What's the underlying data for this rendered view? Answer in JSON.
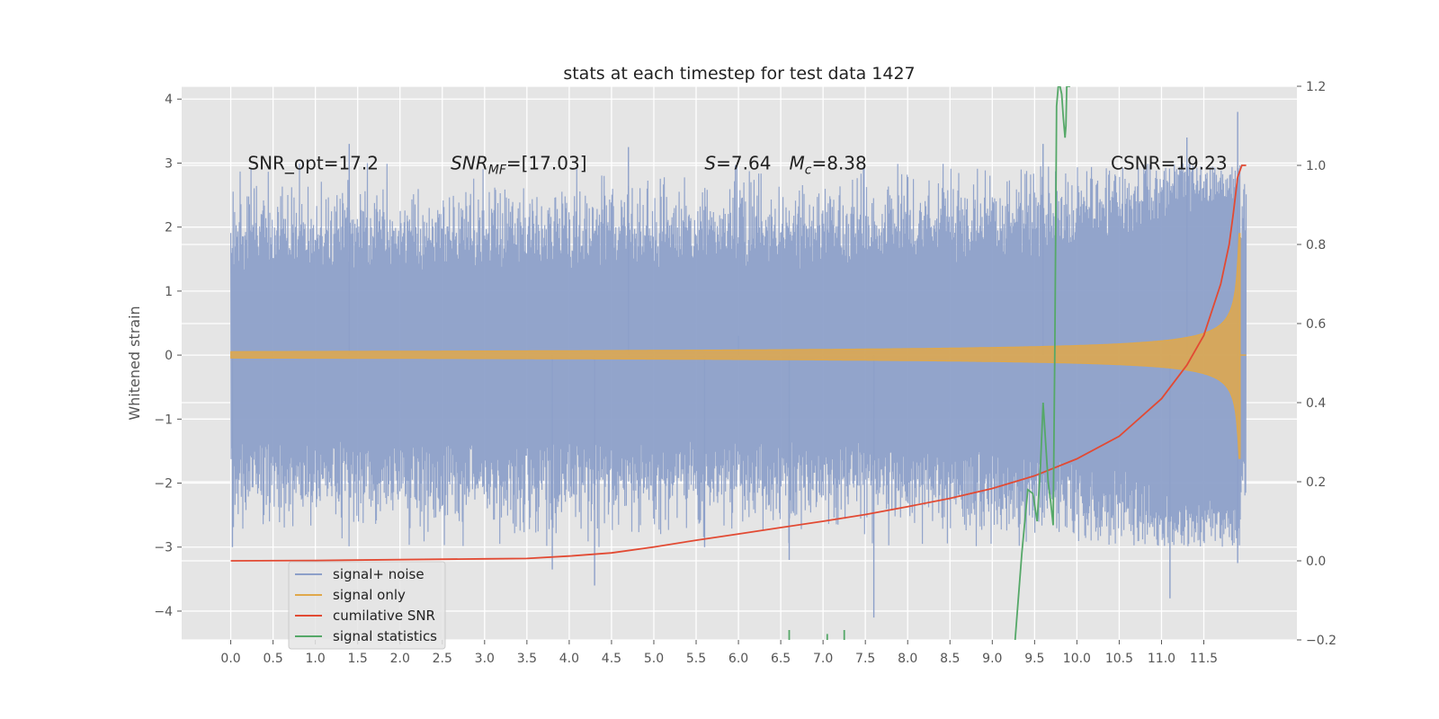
{
  "chart_data": {
    "type": "line",
    "title": "stats at each timestep for test data 1427",
    "ylabel": "Whitened strain",
    "xlim": [
      -0.58,
      12.6
    ],
    "ylim": [
      -4.45,
      4.2
    ],
    "y2lim": [
      -0.2,
      1.2
    ],
    "grid": true,
    "legend_position": "bottom-left",
    "x_ticks": [
      "0.0",
      "0.5",
      "1.0",
      "1.5",
      "2.0",
      "2.5",
      "3.0",
      "3.5",
      "4.0",
      "4.5",
      "5.0",
      "5.5",
      "6.0",
      "6.5",
      "7.0",
      "7.5",
      "8.0",
      "8.5",
      "9.0",
      "9.5",
      "10.0",
      "10.5",
      "11.0",
      "11.5"
    ],
    "y_ticks": [
      "4",
      "3",
      "2",
      "1",
      "0",
      "−1",
      "−2",
      "−3",
      "−4"
    ],
    "y2_ticks": [
      "1.2",
      "1.0",
      "0.8",
      "0.6",
      "0.4",
      "0.2",
      "0.0",
      "−0.2"
    ],
    "annotations": [
      {
        "text": "SNR_opt=17.2",
        "x": 0.2,
        "y": 3.0
      },
      {
        "text": "SNR_MF=[17.03]",
        "x": 2.6,
        "y": 3.0,
        "main": "SNR",
        "sub": "MF",
        "rest": "=[17.03]"
      },
      {
        "text": "S=7.64",
        "x": 5.6,
        "y": 3.0,
        "main": "S",
        "rest": "=7.64"
      },
      {
        "text": "M_c=8.38",
        "x": 6.6,
        "y": 3.0,
        "main": "M",
        "sub": "c",
        "rest": "=8.38"
      },
      {
        "text": "CSNR=19.23",
        "x": 10.4,
        "y": 3.0
      }
    ],
    "series": [
      {
        "name": "signal+ noise",
        "color": "#8da0c9",
        "axis": "left",
        "t_range": [
          0.0,
          12.0
        ],
        "core_amplitude": 1.75,
        "peak_amplitude": 3.8,
        "highlights": [
          [
            0.02,
            -3.0
          ],
          [
            1.4,
            3.3
          ],
          [
            3.8,
            -3.35
          ],
          [
            4.3,
            -3.6
          ],
          [
            4.7,
            3.25
          ],
          [
            5.6,
            -3.0
          ],
          [
            6.0,
            0.3
          ],
          [
            6.6,
            -3.2
          ],
          [
            7.6,
            -4.1
          ],
          [
            9.6,
            3.3
          ],
          [
            11.1,
            -3.8
          ],
          [
            11.3,
            3.4
          ],
          [
            11.9,
            3.8
          ],
          [
            11.9,
            -3.25
          ]
        ]
      },
      {
        "name": "signal only",
        "color": "#e0a84a",
        "axis": "left",
        "t_range": [
          0.0,
          11.93
        ],
        "t_coalescence": 11.93,
        "peak_amplitude": 1.9
      },
      {
        "name": "cumilative SNR",
        "color": "#e24a33",
        "axis": "right",
        "x": [
          0.0,
          1.0,
          2.0,
          3.0,
          3.5,
          4.0,
          4.5,
          5.0,
          5.5,
          6.0,
          6.5,
          7.0,
          7.5,
          8.0,
          8.5,
          9.0,
          9.5,
          10.0,
          10.5,
          11.0,
          11.3,
          11.5,
          11.7,
          11.8,
          11.85,
          11.9,
          11.95,
          12.0
        ],
        "y": [
          0.0,
          0.001,
          0.003,
          0.005,
          0.006,
          0.012,
          0.02,
          0.035,
          0.052,
          0.068,
          0.084,
          0.1,
          0.117,
          0.137,
          0.158,
          0.183,
          0.215,
          0.258,
          0.315,
          0.41,
          0.495,
          0.57,
          0.7,
          0.8,
          0.88,
          0.97,
          1.0,
          1.0
        ]
      },
      {
        "name": "signal statistics",
        "color": "#55a868",
        "axis": "right",
        "segments": [
          {
            "x": [
              6.6,
              6.6
            ],
            "y": [
              -0.2,
              -0.175
            ]
          },
          {
            "x": [
              7.05,
              7.05
            ],
            "y": [
              -0.2,
              -0.185
            ]
          },
          {
            "x": [
              7.25,
              7.25
            ],
            "y": [
              -0.2,
              -0.175
            ]
          },
          {
            "x": [
              9.27,
              9.35,
              9.42,
              9.48,
              9.53,
              9.57,
              9.6,
              9.63,
              9.66,
              9.69,
              9.72,
              9.74,
              9.76,
              9.78,
              9.8,
              9.82,
              9.84,
              9.86,
              9.87,
              9.88,
              9.89,
              9.9,
              9.92
            ],
            "y": [
              -0.2,
              0.02,
              0.18,
              0.17,
              0.1,
              0.24,
              0.4,
              0.3,
              0.2,
              0.15,
              0.09,
              0.55,
              1.15,
              1.2,
              1.2,
              1.18,
              1.12,
              1.07,
              1.1,
              1.2,
              1.2,
              1.2,
              1.2
            ]
          }
        ]
      }
    ]
  }
}
